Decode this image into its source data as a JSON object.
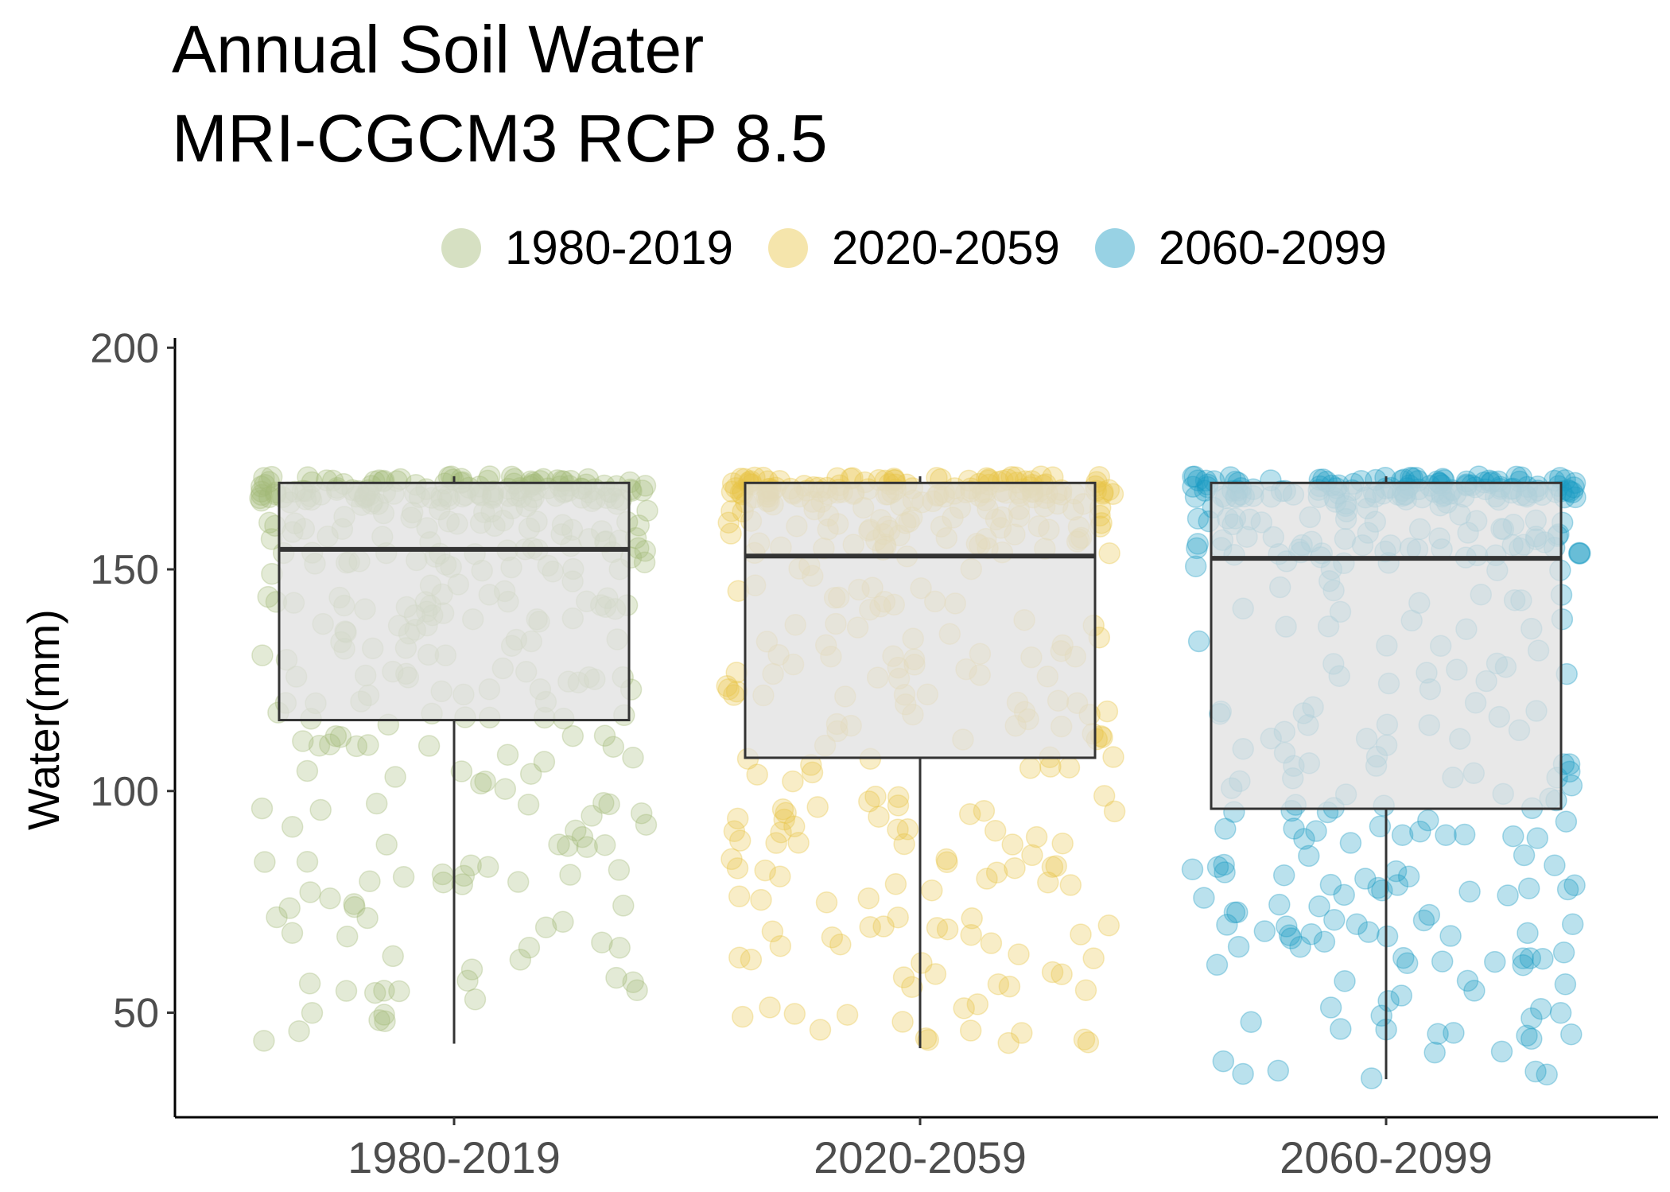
{
  "chart_data": {
    "type": "boxplot",
    "title": "Annual Soil Water\nMRI-CGCM3 RCP 8.5",
    "title_lines": [
      "Annual Soil Water",
      "MRI-CGCM3 RCP 8.5"
    ],
    "xlabel": "",
    "ylabel": "Water(mm)",
    "ylim": [
      30,
      202
    ],
    "yticks": [
      50,
      100,
      150,
      200
    ],
    "grid": false,
    "legend_position": "top",
    "categories": [
      "1980-2019",
      "2020-2059",
      "2060-2099"
    ],
    "legend": [
      {
        "label": "1980-2019",
        "color": "#A3BB78"
      },
      {
        "label": "2020-2059",
        "color": "#E8C547"
      },
      {
        "label": "2060-2099",
        "color": "#1B9CC4"
      }
    ],
    "boxes": [
      {
        "category": "1980-2019",
        "min": 43,
        "q1": 116,
        "median": 154.5,
        "q3": 169.5,
        "max": 171
      },
      {
        "category": "2020-2059",
        "min": 42,
        "q1": 107.5,
        "median": 153,
        "q3": 169.5,
        "max": 171
      },
      {
        "category": "2060-2099",
        "min": 35,
        "q1": 96,
        "median": 152.5,
        "q3": 169.5,
        "max": 171
      }
    ],
    "points_note_count_per_group": 365,
    "box_fill": "#E0E0E0",
    "point_alpha": 0.3
  }
}
